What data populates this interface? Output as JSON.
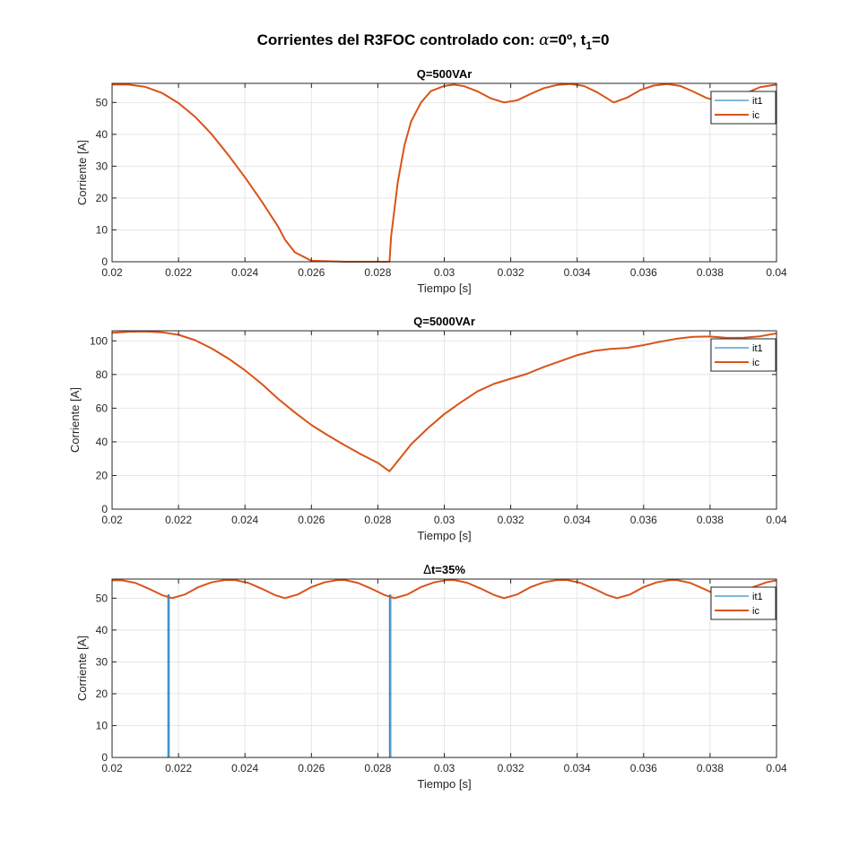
{
  "figure": {
    "title_parts": [
      "Corrientes del R3FOC controlado con: ",
      "α",
      "=0º, t",
      "1",
      "=0"
    ]
  },
  "chart_data": [
    {
      "type": "line",
      "title": "Q=500VAr",
      "xlabel": "Tiempo [s]",
      "ylabel": "Corriente [A]",
      "xlim": [
        0.02,
        0.04
      ],
      "ylim": [
        0,
        56
      ],
      "xticks": [
        "0.02",
        "0.022",
        "0.024",
        "0.026",
        "0.028",
        "0.03",
        "0.032",
        "0.034",
        "0.036",
        "0.038",
        "0.04"
      ],
      "yticks": [
        "0",
        "10",
        "20",
        "30",
        "40",
        "50"
      ],
      "ytick_values": [
        0,
        10,
        20,
        30,
        40,
        50
      ],
      "grid": true,
      "legend": "top-right",
      "series": [
        {
          "name": "it1",
          "color": "#0072BD",
          "width": 1,
          "x": [
            0.02,
            0.04
          ],
          "y": [
            0,
            0
          ]
        },
        {
          "name": "ic",
          "color": "#D95319",
          "width": 2,
          "x": [
            0.02,
            0.0205,
            0.021,
            0.0215,
            0.022,
            0.0225,
            0.023,
            0.0235,
            0.024,
            0.0245,
            0.025,
            0.0252,
            0.0255,
            0.026,
            0.027,
            0.028,
            0.02835,
            0.0284,
            0.0286,
            0.0288,
            0.029,
            0.0293,
            0.0296,
            0.03,
            0.0303,
            0.0306,
            0.031,
            0.0314,
            0.0318,
            0.0322,
            0.0326,
            0.033,
            0.0334,
            0.0338,
            0.0342,
            0.0346,
            0.0351,
            0.0355,
            0.0359,
            0.0363,
            0.0367,
            0.0371,
            0.0375,
            0.0379,
            0.0383,
            0.0387,
            0.0391,
            0.0395,
            0.04
          ],
          "y": [
            55.6,
            55.6,
            54.9,
            53,
            49.8,
            45.5,
            40,
            33.5,
            26.5,
            19,
            11,
            7,
            3,
            0.3,
            0,
            0,
            0,
            8,
            25,
            36.5,
            44,
            50,
            53.6,
            55.2,
            55.6,
            55.1,
            53.5,
            51.3,
            50,
            50.7,
            52.7,
            54.5,
            55.5,
            55.8,
            55.2,
            53.2,
            50,
            51.5,
            53.9,
            55.3,
            55.8,
            55.2,
            53.4,
            51.4,
            50.2,
            51,
            53,
            54.8,
            55.6
          ]
        }
      ]
    },
    {
      "type": "line",
      "title": "Q=5000VAr",
      "xlabel": "Tiempo [s]",
      "ylabel": "Corriente [A]",
      "xlim": [
        0.02,
        0.04
      ],
      "ylim": [
        0,
        106
      ],
      "xticks": [
        "0.02",
        "0.022",
        "0.024",
        "0.026",
        "0.028",
        "0.03",
        "0.032",
        "0.034",
        "0.036",
        "0.038",
        "0.04"
      ],
      "yticks": [
        "0",
        "20",
        "40",
        "60",
        "80",
        "100"
      ],
      "ytick_values": [
        0,
        20,
        40,
        60,
        80,
        100
      ],
      "grid": true,
      "legend": "top-right",
      "series": [
        {
          "name": "it1",
          "color": "#0072BD",
          "width": 1,
          "x": [
            0.02,
            0.04
          ],
          "y": [
            0,
            0
          ]
        },
        {
          "name": "ic",
          "color": "#D95319",
          "width": 2,
          "x": [
            0.02,
            0.0205,
            0.021,
            0.0215,
            0.022,
            0.0225,
            0.023,
            0.0235,
            0.024,
            0.0245,
            0.025,
            0.0255,
            0.026,
            0.0265,
            0.027,
            0.0275,
            0.028,
            0.02835,
            0.0287,
            0.029,
            0.0295,
            0.03,
            0.0305,
            0.031,
            0.0315,
            0.032,
            0.0325,
            0.033,
            0.0335,
            0.034,
            0.0345,
            0.035,
            0.0355,
            0.036,
            0.0365,
            0.037,
            0.0375,
            0.038,
            0.0385,
            0.039,
            0.0395,
            0.04
          ],
          "y": [
            104.8,
            105.4,
            105.6,
            105.1,
            103.6,
            100.4,
            95.5,
            89.5,
            82.5,
            74.5,
            65.5,
            57.5,
            50,
            43.8,
            38,
            32.5,
            27.5,
            22.5,
            31,
            38.5,
            48,
            56.5,
            63.5,
            70,
            74.5,
            77.5,
            80.5,
            84.5,
            88,
            91.5,
            94,
            95.2,
            95.8,
            97.5,
            99.5,
            101.3,
            102.4,
            102.6,
            101.8,
            101.9,
            102.7,
            104.5
          ]
        }
      ]
    },
    {
      "type": "line",
      "title_parts": [
        "Δ",
        "t=35%"
      ],
      "xlabel": "Tiempo [s]",
      "ylabel": "Corriente [A]",
      "xlim": [
        0.02,
        0.04
      ],
      "ylim": [
        0,
        56
      ],
      "xticks": [
        "0.02",
        "0.022",
        "0.024",
        "0.026",
        "0.028",
        "0.03",
        "0.032",
        "0.034",
        "0.036",
        "0.038",
        "0.04"
      ],
      "yticks": [
        "0",
        "10",
        "20",
        "30",
        "40",
        "50"
      ],
      "ytick_values": [
        0,
        10,
        20,
        30,
        40,
        50
      ],
      "grid": true,
      "legend": "top-right",
      "series": [
        {
          "name": "it1",
          "color": "#0072BD",
          "width": 1,
          "x": [
            0.02,
            0.02168,
            0.02168,
            0.02172,
            0.02172,
            0.02835,
            0.02835,
            0.02839,
            0.02839,
            0.04
          ],
          "y": [
            0,
            0,
            51,
            51,
            0,
            0,
            51,
            51,
            0,
            0
          ]
        },
        {
          "name": "ic",
          "color": "#D95319",
          "width": 2,
          "x": [
            0.02,
            0.0203,
            0.0207,
            0.0211,
            0.0215,
            0.0218,
            0.0222,
            0.0226,
            0.023,
            0.0234,
            0.0237,
            0.0241,
            0.0245,
            0.0249,
            0.0252,
            0.0256,
            0.026,
            0.0264,
            0.0268,
            0.027,
            0.0274,
            0.0278,
            0.0282,
            0.0285,
            0.0289,
            0.0293,
            0.0297,
            0.0301,
            0.0303,
            0.0307,
            0.0311,
            0.0315,
            0.0318,
            0.0322,
            0.0326,
            0.033,
            0.0334,
            0.0337,
            0.0341,
            0.0345,
            0.0349,
            0.0352,
            0.0356,
            0.036,
            0.0364,
            0.0368,
            0.037,
            0.0374,
            0.0378,
            0.0382,
            0.0385,
            0.0389,
            0.0393,
            0.0397,
            0.04
          ],
          "y": [
            55.6,
            55.6,
            54.8,
            53,
            51,
            50,
            51.2,
            53.5,
            55,
            55.7,
            55.7,
            54.8,
            53,
            51,
            50,
            51.2,
            53.5,
            55,
            55.7,
            55.7,
            54.8,
            53,
            51,
            50,
            51.2,
            53.5,
            55,
            55.7,
            55.7,
            54.8,
            53,
            51,
            50,
            51.2,
            53.5,
            55,
            55.7,
            55.7,
            54.8,
            53,
            51,
            50,
            51.2,
            53.5,
            55,
            55.7,
            55.7,
            54.8,
            53,
            51,
            50,
            51.2,
            53.5,
            55,
            55.6
          ]
        }
      ]
    }
  ]
}
